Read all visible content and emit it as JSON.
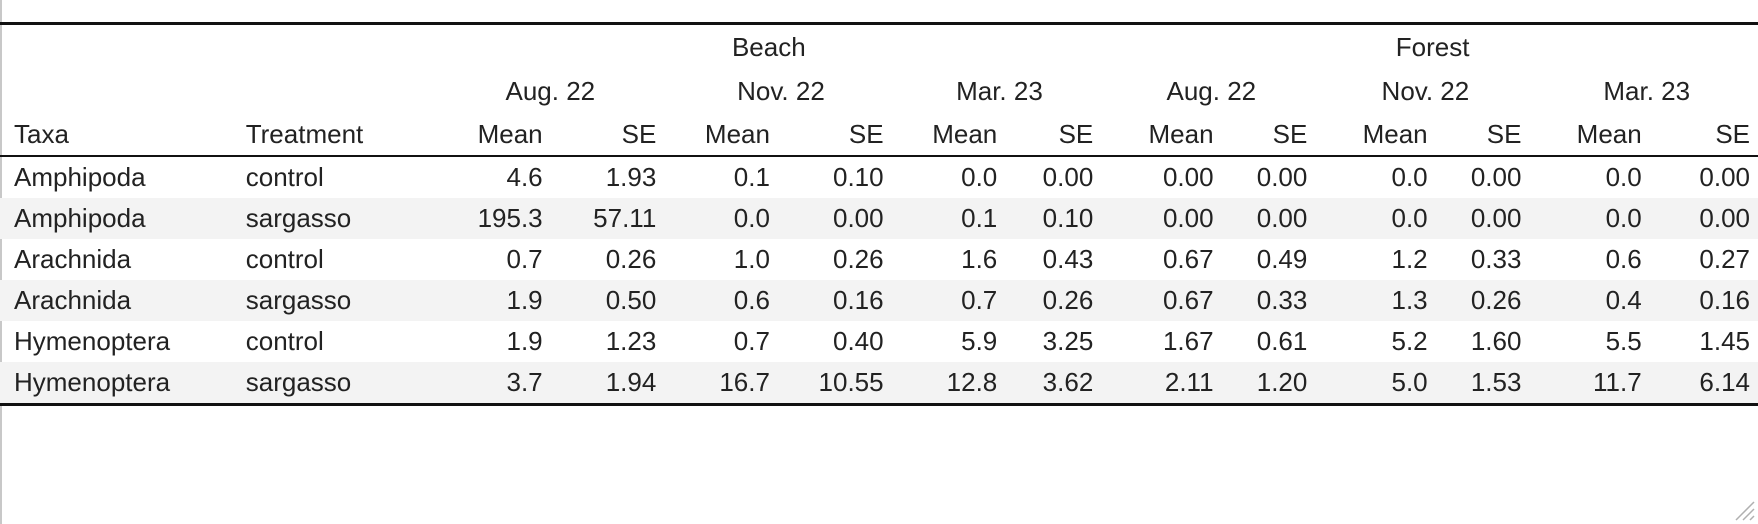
{
  "table": {
    "groups": [
      {
        "label": "Beach",
        "span": 6
      },
      {
        "label": "Forest",
        "span": 6
      }
    ],
    "dates": [
      "Aug. 22",
      "Nov. 22",
      "Mar. 23",
      "Aug. 22",
      "Nov. 22",
      "Mar. 23"
    ],
    "columns": [
      "Taxa",
      "Treatment",
      "Mean",
      "SE",
      "Mean",
      "SE",
      "Mean",
      "SE",
      "Mean",
      "SE",
      "Mean",
      "SE",
      "Mean",
      "SE"
    ],
    "rows": [
      [
        "Amphipoda",
        "control",
        "4.6",
        "1.93",
        "0.1",
        "0.10",
        "0.0",
        "0.00",
        "0.00",
        "0.00",
        "0.0",
        "0.00",
        "0.0",
        "0.00"
      ],
      [
        "Amphipoda",
        "sargasso",
        "195.3",
        "57.11",
        "0.0",
        "0.00",
        "0.1",
        "0.10",
        "0.00",
        "0.00",
        "0.0",
        "0.00",
        "0.0",
        "0.00"
      ],
      [
        "Arachnida",
        "control",
        "0.7",
        "0.26",
        "1.0",
        "0.26",
        "1.6",
        "0.43",
        "0.67",
        "0.49",
        "1.2",
        "0.33",
        "0.6",
        "0.27"
      ],
      [
        "Arachnida",
        "sargasso",
        "1.9",
        "0.50",
        "0.6",
        "0.16",
        "0.7",
        "0.26",
        "0.67",
        "0.33",
        "1.3",
        "0.26",
        "0.4",
        "0.16"
      ],
      [
        "Hymenoptera",
        "control",
        "1.9",
        "1.23",
        "0.7",
        "0.40",
        "5.9",
        "3.25",
        "1.67",
        "0.61",
        "5.2",
        "1.60",
        "5.5",
        "1.45"
      ],
      [
        "Hymenoptera",
        "sargasso",
        "3.7",
        "1.94",
        "16.7",
        "10.55",
        "12.8",
        "3.62",
        "2.11",
        "1.20",
        "5.0",
        "1.53",
        "11.7",
        "6.14"
      ]
    ]
  }
}
